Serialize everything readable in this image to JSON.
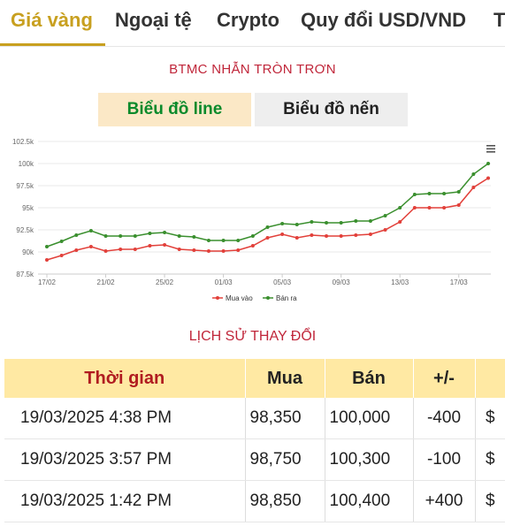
{
  "tabs": [
    {
      "label": "Giá vàng",
      "active": true
    },
    {
      "label": "Ngoại tệ",
      "active": false
    },
    {
      "label": "Crypto",
      "active": false
    },
    {
      "label": "Quy đổi USD/VND",
      "active": false
    },
    {
      "label": "T",
      "active": false
    }
  ],
  "chart_section": {
    "title": "BTMC NHẪN TRÒN TRƠN",
    "line_button": "Biểu đồ line",
    "candle_button": "Biểu đồ nến",
    "menu_icon": "hamburger-menu-icon"
  },
  "chart_data": {
    "type": "line",
    "x_tick_labels": [
      "17/02",
      "21/02",
      "25/02",
      "01/03",
      "05/03",
      "09/03",
      "13/03",
      "17/03"
    ],
    "y_tick_labels": [
      "87.5k",
      "90k",
      "92.5k",
      "95k",
      "97.5k",
      "100k",
      "102.5k"
    ],
    "ylim": [
      87500,
      102500
    ],
    "grid": true,
    "legend_position": "bottom",
    "series": [
      {
        "name": "Mua vào",
        "color": "#e2403a",
        "values": [
          89100,
          89600,
          90200,
          90600,
          90100,
          90300,
          90300,
          90700,
          90800,
          90300,
          90200,
          90100,
          90100,
          90200,
          90700,
          91600,
          92000,
          91600,
          91900,
          91800,
          91800,
          91900,
          92000,
          92500,
          93400,
          95000,
          95000,
          95000,
          95300,
          97300,
          98350
        ]
      },
      {
        "name": "Bán ra",
        "color": "#3a8f2e",
        "values": [
          90600,
          91200,
          91900,
          92400,
          91800,
          91800,
          91800,
          92100,
          92200,
          91800,
          91700,
          91300,
          91300,
          91300,
          91800,
          92800,
          93200,
          93100,
          93400,
          93300,
          93300,
          93500,
          93500,
          94100,
          95000,
          96500,
          96600,
          96600,
          96800,
          98800,
          100000
        ]
      }
    ]
  },
  "history": {
    "title": "LỊCH SỬ THAY ĐỔI",
    "headers": {
      "time": "Thời gian",
      "buy": "Mua",
      "sell": "Bán",
      "change": "+/-",
      "currency": ""
    },
    "rows": [
      {
        "time": "19/03/2025 4:38 PM",
        "buy": "98,350",
        "sell": "100,000",
        "change": "-400",
        "currency": "$",
        "direction": "down"
      },
      {
        "time": "19/03/2025 3:57 PM",
        "buy": "98,750",
        "sell": "100,300",
        "change": "-100",
        "currency": "$",
        "direction": "down"
      },
      {
        "time": "19/03/2025 1:42 PM",
        "buy": "98,850",
        "sell": "100,400",
        "change": "+400",
        "currency": "$",
        "direction": "up"
      }
    ]
  }
}
